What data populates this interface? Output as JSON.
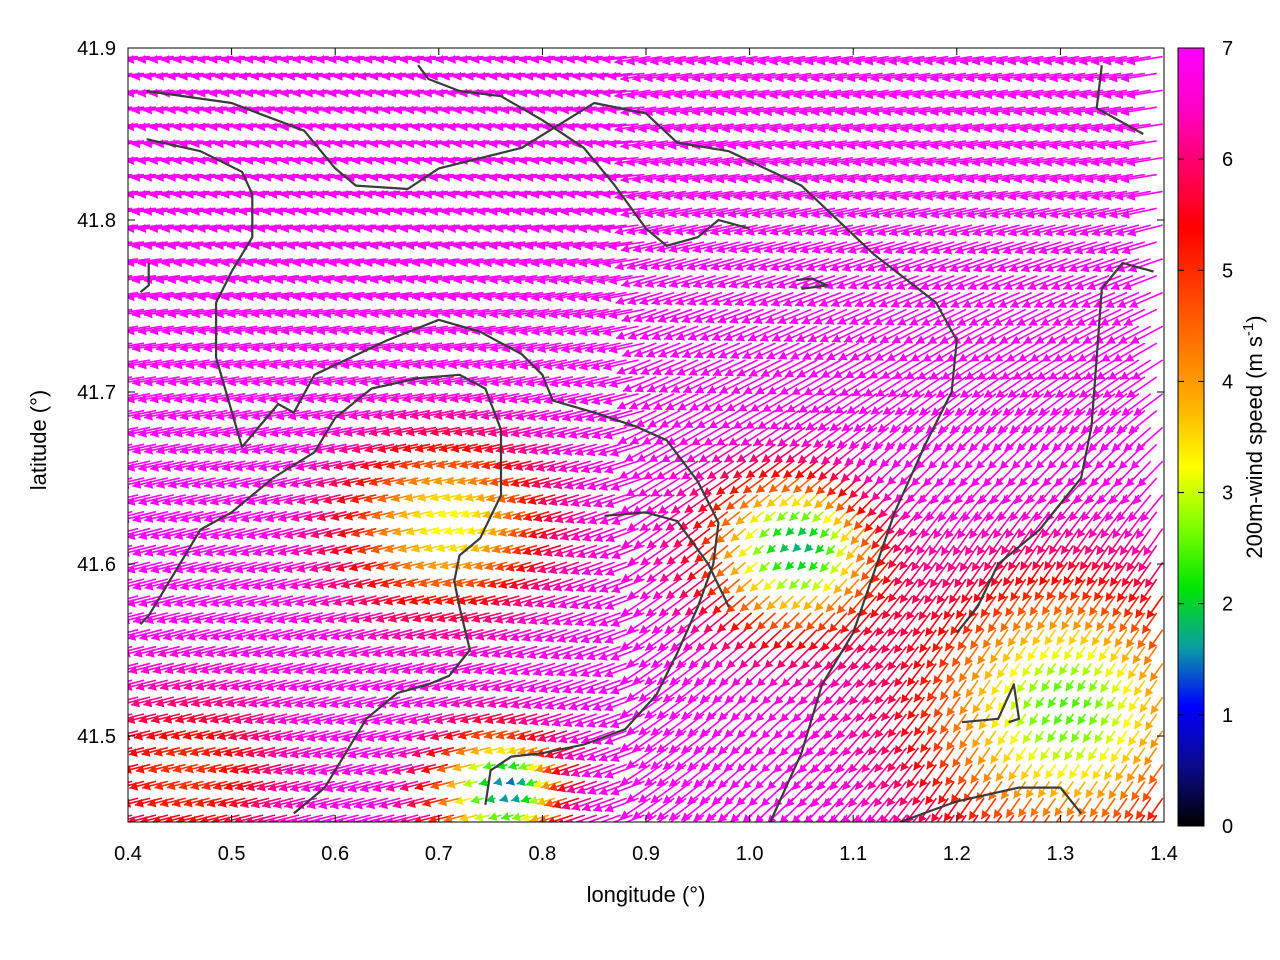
{
  "chart_data": {
    "type": "vector-field",
    "title": "",
    "xlabel": "longitude (°)",
    "ylabel": "latitude (°)",
    "xlim": [
      0.4,
      1.4
    ],
    "ylim": [
      41.45,
      41.9
    ],
    "xticks": [
      "0.4",
      "0.5",
      "0.6",
      "0.7",
      "0.8",
      "0.9",
      "1.0",
      "1.1",
      "1.2",
      "1.3",
      "1.4"
    ],
    "yticks": [
      "41.5",
      "41.6",
      "41.7",
      "41.8",
      "41.9"
    ],
    "colorbar": {
      "label_main": "200m-wind speed (m s",
      "label_sup": "-1",
      "label_end": ")",
      "range": [
        0,
        7
      ],
      "ticks": [
        "0",
        "1",
        "2",
        "3",
        "4",
        "5",
        "6",
        "7"
      ],
      "palette": [
        "#000000",
        "#0a0a8c",
        "#0000ff",
        "#0aa0a0",
        "#00e600",
        "#7fff00",
        "#ffff00",
        "#ffb400",
        "#ff7800",
        "#ff3c00",
        "#ff0000",
        "#ff0064",
        "#ff00c8",
        "#ff00ff"
      ]
    },
    "grid": false,
    "legend": "colorbar right",
    "vector_samples": [
      {
        "lon": 0.45,
        "lat": 41.88,
        "u": -6.8,
        "v": 0.0,
        "speed": 7.0
      },
      {
        "lon": 0.6,
        "lat": 41.8,
        "u": -6.7,
        "v": 0.6,
        "speed": 7.0
      },
      {
        "lon": 0.9,
        "lat": 41.82,
        "u": -5.5,
        "v": 3.5,
        "speed": 7.0
      },
      {
        "lon": 1.2,
        "lat": 41.85,
        "u": -3.5,
        "v": 5.5,
        "speed": 7.0
      },
      {
        "lon": 0.72,
        "lat": 41.62,
        "u": -3.0,
        "v": 1.0,
        "speed": 3.5
      },
      {
        "lon": 1.05,
        "lat": 41.61,
        "u": -1.5,
        "v": 0.5,
        "speed": 2.0
      },
      {
        "lon": 1.3,
        "lat": 41.52,
        "u": -2.0,
        "v": 0.8,
        "speed": 2.5
      },
      {
        "lon": 0.77,
        "lat": 41.47,
        "u": -1.0,
        "v": 0.5,
        "speed": 1.5
      }
    ]
  }
}
